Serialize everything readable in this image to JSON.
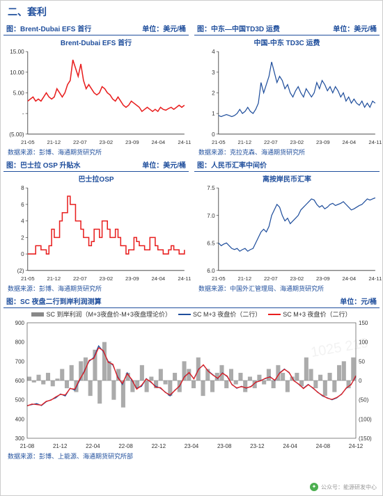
{
  "section_title": "二、套利",
  "row1": {
    "left": {
      "header_left": "图：Brent-Dubai EFS 首行",
      "header_right": "单位：美元/桶",
      "chart_title": "Brent-Dubai EFS 首行",
      "source": "数据来源：彭博、海通期货研究所",
      "type": "line",
      "line_color": "#e81e1e",
      "line_width": 1.5,
      "ylim": [
        -5,
        15
      ],
      "yticks": [
        "(5.00)",
        "-",
        "5.00",
        "10.00",
        "15.00"
      ],
      "xticks": [
        "21-05",
        "21-12",
        "22-07",
        "23-02",
        "23-09",
        "24-04",
        "24-11"
      ],
      "data": [
        3,
        3.5,
        4,
        3,
        3.5,
        3,
        4,
        5,
        4,
        3.5,
        4,
        6,
        5,
        4,
        5,
        7,
        8,
        13,
        11,
        9,
        12,
        8,
        6,
        7,
        6,
        5,
        4.5,
        5,
        6.5,
        6,
        5,
        4.5,
        3.5,
        3,
        4,
        3,
        2,
        1.5,
        2,
        3,
        2.5,
        2,
        1.5,
        0.5,
        1,
        1.5,
        1,
        0.5,
        1,
        0.5,
        1.5,
        1,
        0.8,
        1.2,
        1.5,
        1,
        1.5,
        2,
        1.5,
        2
      ]
    },
    "right": {
      "header_left": "图：中东—中国TD3D 运费",
      "header_right": "单位：美元/桶",
      "chart_title": "中国-中东 TD3C 运费",
      "source": "数据来源：克拉克森、海通期货研究所",
      "type": "line",
      "line_color": "#1f4e9c",
      "line_width": 1.2,
      "ylim": [
        0,
        4
      ],
      "yticks": [
        "0",
        "1",
        "2",
        "3",
        "4"
      ],
      "xticks": [
        "21-05",
        "21-12",
        "22-07",
        "23-02",
        "23-09",
        "24-04",
        "24-11"
      ],
      "data": [
        0.9,
        0.85,
        0.9,
        0.95,
        0.9,
        0.85,
        0.9,
        1,
        1.2,
        1,
        1.1,
        1.3,
        1.1,
        1,
        1.2,
        1.5,
        2.5,
        2,
        2.4,
        2.8,
        3.5,
        3,
        2.5,
        2.8,
        2.6,
        2.2,
        2.4,
        2,
        1.8,
        2.1,
        2.3,
        2,
        1.8,
        2.2,
        2,
        1.8,
        2,
        2.5,
        2.2,
        2.6,
        2.4,
        2.1,
        2.3,
        2,
        2.3,
        2.1,
        1.8,
        2,
        1.6,
        1.8,
        1.5,
        1.7,
        1.5,
        1.4,
        1.6,
        1.3,
        1.5,
        1.3,
        1.6,
        1.5
      ]
    }
  },
  "row2": {
    "left": {
      "header_left": "图：巴士拉 OSP 升贴水",
      "header_right": "单位：美元/桶",
      "chart_title": "巴士拉OSP",
      "source": "数据来源：彭博、海通期货研究所",
      "type": "step",
      "line_color": "#e81e1e",
      "line_width": 1.5,
      "ylim": [
        -2,
        8
      ],
      "yticks": [
        "(2)",
        "0",
        "2",
        "4",
        "6",
        "8"
      ],
      "xticks": [
        "21-05",
        "21-12",
        "22-07",
        "23-02",
        "23-09",
        "24-04",
        "24-11"
      ],
      "data": [
        0,
        0,
        0,
        1,
        1,
        0.5,
        0.5,
        0,
        1,
        3,
        2,
        2,
        4,
        5,
        5,
        7,
        6,
        6,
        4,
        4,
        3,
        2,
        2,
        1,
        1.5,
        3,
        3,
        2,
        4,
        4,
        3,
        2,
        2,
        3,
        2,
        1,
        1,
        0,
        0.5,
        0.5,
        2,
        1.5,
        1,
        1,
        0.5,
        0.5,
        2,
        2,
        1,
        0.5,
        0.5,
        0,
        0,
        0.5,
        1,
        0.5,
        0.5,
        0,
        0,
        0.5
      ]
    },
    "right": {
      "header_left": "图：人民币汇率中间价",
      "header_right": "",
      "chart_title": "离按岸民币汇率",
      "source": "数据来源：中国外汇管理局、海通期货研究所",
      "type": "line",
      "line_color": "#1f4e9c",
      "line_width": 1.2,
      "ylim": [
        6,
        7.5
      ],
      "yticks": [
        "6.0",
        "6.5",
        "7.0",
        "7.5"
      ],
      "xticks": [
        "21-05",
        "21-12",
        "22-07",
        "23-02",
        "23-09",
        "24-04",
        "24-11"
      ],
      "data": [
        6.5,
        6.45,
        6.48,
        6.5,
        6.45,
        6.4,
        6.38,
        6.4,
        6.35,
        6.38,
        6.4,
        6.35,
        6.38,
        6.4,
        6.5,
        6.6,
        6.7,
        6.75,
        6.7,
        6.8,
        7.0,
        7.1,
        7.2,
        7.15,
        7.0,
        6.9,
        6.95,
        6.85,
        6.9,
        6.95,
        7.0,
        7.1,
        7.15,
        7.2,
        7.25,
        7.3,
        7.28,
        7.2,
        7.15,
        7.18,
        7.12,
        7.15,
        7.2,
        7.22,
        7.18,
        7.2,
        7.22,
        7.25,
        7.2,
        7.15,
        7.1,
        7.12,
        7.15,
        7.18,
        7.2,
        7.25,
        7.3,
        7.28,
        7.3,
        7.32
      ]
    }
  },
  "row3": {
    "header_left": "图：SC 夜盘二行到岸利润测算",
    "header_right": "单位：元/桶",
    "source": "数据来源：彭博、上能源、海通期货研究所部",
    "type": "combo",
    "legend": [
      {
        "label": "SC 到岸利润（M+3夜盘价-M+3夜盘理论价）",
        "color": "#888888",
        "kind": "bar"
      },
      {
        "label": "SC M+3 夜盘价（二行）",
        "color": "#1f4e9c",
        "kind": "line"
      },
      {
        "label": "SC M+3 夜盘价（二行）",
        "color": "#e81e1e",
        "kind": "line"
      }
    ],
    "y1": {
      "lim": [
        300,
        900
      ],
      "ticks": [
        "300",
        "400",
        "500",
        "600",
        "700",
        "800",
        "900"
      ]
    },
    "y2": {
      "lim": [
        -150,
        150
      ],
      "ticks": [
        "(150)",
        "(100)",
        "(50)",
        "0",
        "50",
        "100",
        "150"
      ]
    },
    "xticks": [
      "21-08",
      "21-12",
      "22-04",
      "22-08",
      "22-12",
      "23-04",
      "23-08",
      "23-12",
      "24-04",
      "24-08",
      "24-12"
    ],
    "bars_color": "#888888",
    "line1_color": "#1f4e9c",
    "line2_color": "#e81e1e",
    "bars": [
      10,
      -5,
      15,
      -10,
      20,
      -15,
      5,
      30,
      -20,
      40,
      -30,
      50,
      60,
      -40,
      80,
      -60,
      100,
      50,
      -50,
      30,
      -70,
      20,
      -30,
      -20,
      40,
      -30,
      10,
      -20,
      30,
      -10,
      -40,
      20,
      -30,
      50,
      30,
      -20,
      60,
      -40,
      30,
      -30,
      20,
      40,
      -20,
      30,
      -10,
      20,
      -30,
      10,
      -20,
      15,
      -10,
      30,
      -20,
      40,
      20,
      -30,
      10,
      20,
      -15,
      60,
      30,
      -20,
      15,
      -40,
      20,
      -30,
      40,
      50,
      -20,
      60
    ],
    "line1": [
      470,
      475,
      480,
      470,
      490,
      500,
      510,
      530,
      520,
      560,
      550,
      600,
      650,
      700,
      720,
      780,
      750,
      700,
      680,
      620,
      580,
      640,
      600,
      560,
      570,
      610,
      590,
      570,
      560,
      540,
      520,
      550,
      570,
      620,
      640,
      610,
      660,
      680,
      650,
      630,
      610,
      640,
      620,
      580,
      560,
      570,
      560,
      570,
      590,
      600,
      610,
      620,
      600,
      640,
      660,
      640,
      600,
      580,
      560,
      580,
      560,
      540,
      520,
      510,
      500,
      510,
      530,
      560,
      580,
      620
    ],
    "line2": [
      468,
      478,
      475,
      472,
      492,
      498,
      515,
      528,
      525,
      558,
      555,
      605,
      645,
      705,
      715,
      770,
      755,
      695,
      685,
      615,
      585,
      635,
      605,
      555,
      575,
      608,
      593,
      565,
      563,
      538,
      525,
      548,
      573,
      618,
      642,
      608,
      658,
      682,
      648,
      628,
      612,
      638,
      623,
      578,
      562,
      568,
      562,
      568,
      592,
      598,
      612,
      618,
      602,
      638,
      658,
      642,
      598,
      582,
      558,
      578,
      562,
      538,
      523,
      508,
      502,
      512,
      528,
      562,
      578,
      625
    ]
  },
  "footer": "公众号：能源研发中心"
}
